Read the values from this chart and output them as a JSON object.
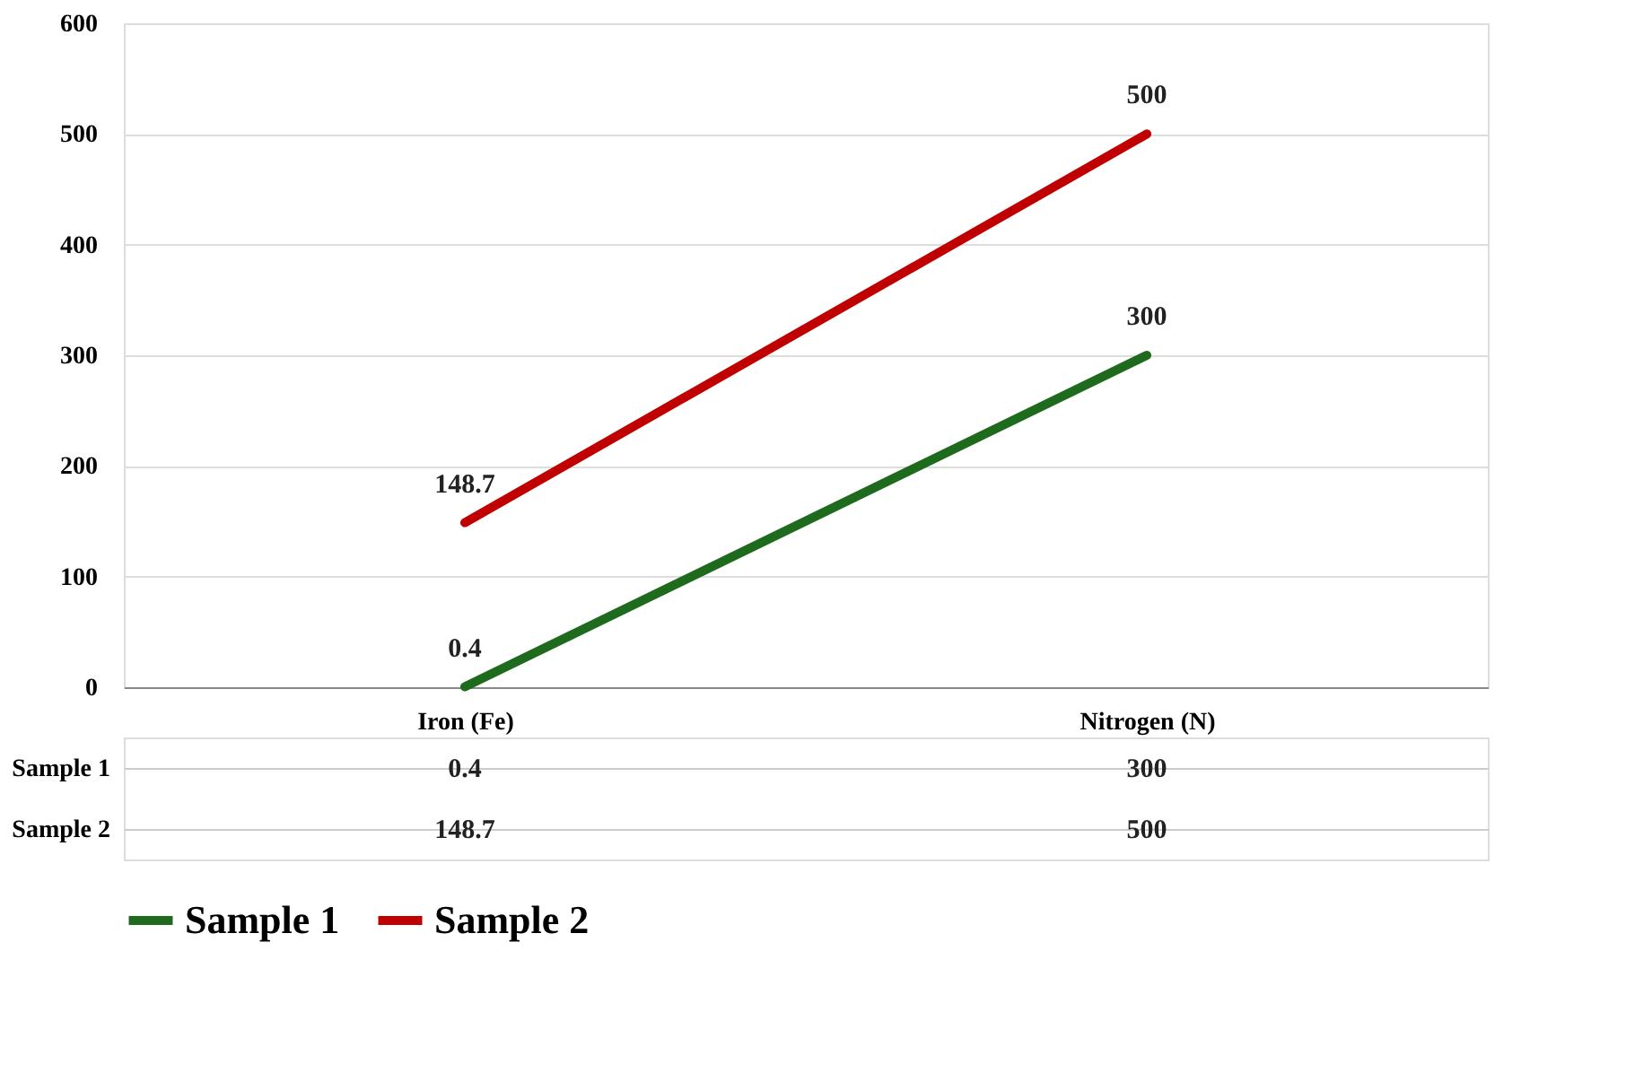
{
  "chart_data": {
    "type": "line",
    "categories": [
      "Iron (Fe)",
      "Nitrogen (N)"
    ],
    "series": [
      {
        "name": "Sample 1",
        "color": "#1e6b1e",
        "values": [
          0.4,
          300
        ],
        "value_labels": [
          "0.4",
          "300"
        ]
      },
      {
        "name": "Sample 2",
        "color": "#c00000",
        "values": [
          148.7,
          500
        ],
        "value_labels": [
          "148.7",
          "500"
        ]
      }
    ],
    "ylim": [
      0,
      600
    ],
    "yticks": [
      0,
      100,
      200,
      300,
      400,
      500,
      600
    ],
    "annotations": [
      "0.4",
      "300",
      "148.7",
      "500"
    ],
    "grid": "y",
    "data_labels": true,
    "legend": "bottom",
    "marker": "none",
    "line_style": "solid"
  }
}
